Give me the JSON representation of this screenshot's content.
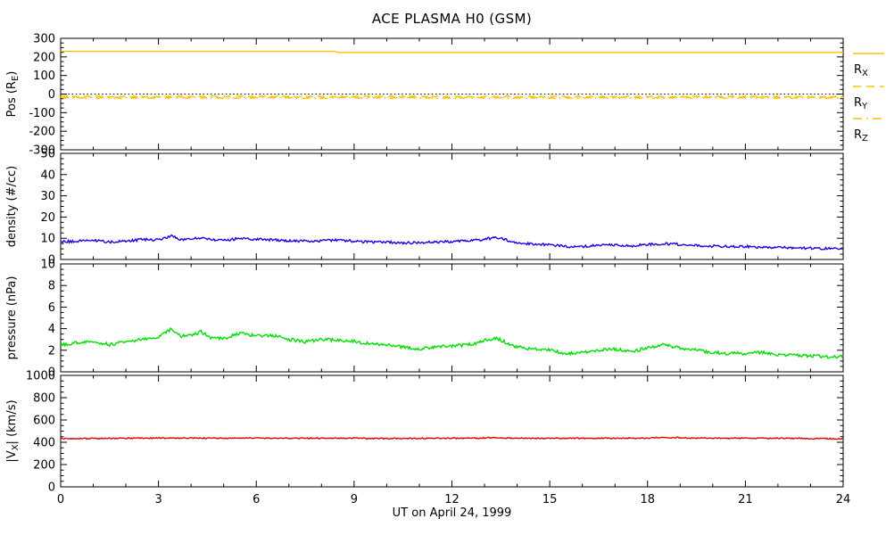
{
  "chart_data": {
    "type": "line",
    "title": "ACE PLASMA H0 (GSM)",
    "xlabel": "UT on April 24, 1999",
    "x_range": [
      0,
      24
    ],
    "x_major_ticks": [
      0,
      3,
      6,
      9,
      12,
      15,
      18,
      21,
      24
    ],
    "x_minor_step": 1,
    "grid": "off",
    "panels": [
      {
        "name": "position",
        "ylabel": "Pos (R_{E})",
        "ylim": [
          -300,
          300
        ],
        "yticks": [
          300,
          200,
          100,
          0,
          -100,
          -200,
          -300
        ],
        "y_minor_step": 25,
        "refline": {
          "value": 0,
          "style": "dot",
          "color": "#000000"
        },
        "series": [
          {
            "name": "R_X",
            "color": "#FFC000",
            "style": "solid",
            "noise": 0,
            "points": [
              [
                0,
                230
              ],
              [
                8.4,
                230
              ],
              [
                8.5,
                224
              ],
              [
                24,
                224
              ]
            ]
          },
          {
            "name": "R_Y",
            "color": "#FFC000",
            "style": "dash",
            "noise": 4,
            "points": [
              [
                0,
                -13
              ],
              [
                24,
                -14
              ]
            ]
          },
          {
            "name": "R_Z",
            "color": "#FFC000",
            "style": "dashdot",
            "noise": 4,
            "points": [
              [
                0,
                -20
              ],
              [
                24,
                -20
              ]
            ]
          }
        ],
        "legend": [
          {
            "label": "R_{X}",
            "style": "solid"
          },
          {
            "label": "R_{Y}",
            "style": "dash"
          },
          {
            "label": "R_{Z}",
            "style": "dashdot"
          }
        ],
        "legend_position": "right"
      },
      {
        "name": "density",
        "ylabel": "density (#/cc)",
        "ylim": [
          0,
          50
        ],
        "yticks": [
          50,
          40,
          30,
          20,
          10,
          0
        ],
        "y_minor_step": 2.5,
        "series": [
          {
            "name": "proton_density",
            "color": "#2200DD",
            "style": "solid",
            "noise": 0.6,
            "points": [
              [
                0,
                8.3
              ],
              [
                0.5,
                8.6
              ],
              [
                1,
                9.0
              ],
              [
                1.5,
                8.2
              ],
              [
                2,
                8.6
              ],
              [
                2.5,
                9.4
              ],
              [
                3,
                9.2
              ],
              [
                3.4,
                11.3
              ],
              [
                3.7,
                9.2
              ],
              [
                4,
                9.6
              ],
              [
                4.3,
                10.2
              ],
              [
                4.6,
                9.4
              ],
              [
                5,
                9.2
              ],
              [
                5.5,
                9.8
              ],
              [
                6,
                9.6
              ],
              [
                6.5,
                9.2
              ],
              [
                7,
                8.8
              ],
              [
                7.5,
                8.6
              ],
              [
                8,
                8.8
              ],
              [
                8.5,
                9.2
              ],
              [
                9,
                8.6
              ],
              [
                9.5,
                8.2
              ],
              [
                10,
                8.3
              ],
              [
                10.5,
                7.8
              ],
              [
                11,
                8.0
              ],
              [
                11.5,
                8.2
              ],
              [
                12,
                8.4
              ],
              [
                12.5,
                8.6
              ],
              [
                13,
                9.6
              ],
              [
                13.4,
                10.3
              ],
              [
                13.8,
                8.6
              ],
              [
                14,
                7.8
              ],
              [
                14.5,
                7.2
              ],
              [
                15,
                7.0
              ],
              [
                15.5,
                6.0
              ],
              [
                16,
                6.1
              ],
              [
                16.5,
                6.6
              ],
              [
                17,
                6.9
              ],
              [
                17.5,
                6.4
              ],
              [
                18,
                7.0
              ],
              [
                18.5,
                7.4
              ],
              [
                19,
                7.1
              ],
              [
                19.5,
                6.7
              ],
              [
                20,
                6.3
              ],
              [
                20.5,
                6.0
              ],
              [
                21,
                6.2
              ],
              [
                21.5,
                5.8
              ],
              [
                22,
                5.6
              ],
              [
                22.5,
                5.5
              ],
              [
                23,
                5.3
              ],
              [
                23.5,
                5.2
              ],
              [
                24,
                5.0
              ]
            ]
          }
        ]
      },
      {
        "name": "pressure",
        "ylabel": "pressure (nPa)",
        "ylim": [
          0,
          10
        ],
        "yticks": [
          10,
          8,
          6,
          4,
          2,
          0
        ],
        "y_minor_step": 0.5,
        "series": [
          {
            "name": "ram_pressure",
            "color": "#00DD00",
            "style": "solid",
            "noise": 0.15,
            "points": [
              [
                0,
                2.5
              ],
              [
                0.5,
                2.7
              ],
              [
                1,
                2.8
              ],
              [
                1.5,
                2.5
              ],
              [
                2,
                2.8
              ],
              [
                2.5,
                3.0
              ],
              [
                3,
                3.2
              ],
              [
                3.4,
                4.0
              ],
              [
                3.7,
                3.3
              ],
              [
                4,
                3.4
              ],
              [
                4.3,
                3.7
              ],
              [
                4.6,
                3.2
              ],
              [
                5,
                3.1
              ],
              [
                5.5,
                3.6
              ],
              [
                6,
                3.3
              ],
              [
                6.5,
                3.4
              ],
              [
                7,
                3.0
              ],
              [
                7.5,
                2.8
              ],
              [
                8,
                3.0
              ],
              [
                8.5,
                2.9
              ],
              [
                9,
                2.8
              ],
              [
                9.5,
                2.6
              ],
              [
                10,
                2.5
              ],
              [
                10.5,
                2.3
              ],
              [
                11,
                2.1
              ],
              [
                11.5,
                2.3
              ],
              [
                12,
                2.4
              ],
              [
                12.5,
                2.5
              ],
              [
                13,
                2.9
              ],
              [
                13.4,
                3.1
              ],
              [
                13.8,
                2.5
              ],
              [
                14,
                2.3
              ],
              [
                14.5,
                2.1
              ],
              [
                15,
                2.0
              ],
              [
                15.5,
                1.7
              ],
              [
                16,
                1.8
              ],
              [
                16.5,
                2.0
              ],
              [
                17,
                2.1
              ],
              [
                17.5,
                1.9
              ],
              [
                18,
                2.2
              ],
              [
                18.5,
                2.5
              ],
              [
                19,
                2.2
              ],
              [
                19.5,
                2.0
              ],
              [
                20,
                1.8
              ],
              [
                20.5,
                1.7
              ],
              [
                21,
                1.7
              ],
              [
                21.5,
                1.8
              ],
              [
                22,
                1.6
              ],
              [
                22.5,
                1.5
              ],
              [
                23,
                1.5
              ],
              [
                23.5,
                1.4
              ],
              [
                24,
                1.4
              ]
            ]
          }
        ]
      },
      {
        "name": "vx_speed",
        "ylabel": "|V_{X}| (km/s)",
        "ylim": [
          0,
          1000
        ],
        "yticks": [
          1000,
          800,
          600,
          400,
          200,
          0
        ],
        "y_minor_step": 50,
        "series": [
          {
            "name": "vx_magnitude",
            "color": "#E00000",
            "style": "solid",
            "noise": 5,
            "points": [
              [
                0,
                432
              ],
              [
                1,
                434
              ],
              [
                2,
                436
              ],
              [
                3,
                437
              ],
              [
                4,
                438
              ],
              [
                5,
                436
              ],
              [
                6,
                437
              ],
              [
                7,
                436
              ],
              [
                8,
                437
              ],
              [
                9,
                436
              ],
              [
                10,
                434
              ],
              [
                11,
                435
              ],
              [
                12,
                436
              ],
              [
                12.8,
                436
              ],
              [
                13.2,
                443
              ],
              [
                13.6,
                439
              ],
              [
                14,
                437
              ],
              [
                15,
                435
              ],
              [
                16,
                436
              ],
              [
                17,
                436
              ],
              [
                18,
                437
              ],
              [
                18.5,
                444
              ],
              [
                19,
                441
              ],
              [
                19.5,
                437
              ],
              [
                20,
                436
              ],
              [
                21,
                436
              ],
              [
                22,
                436
              ],
              [
                23,
                434
              ],
              [
                24,
                431
              ]
            ]
          }
        ]
      }
    ]
  }
}
